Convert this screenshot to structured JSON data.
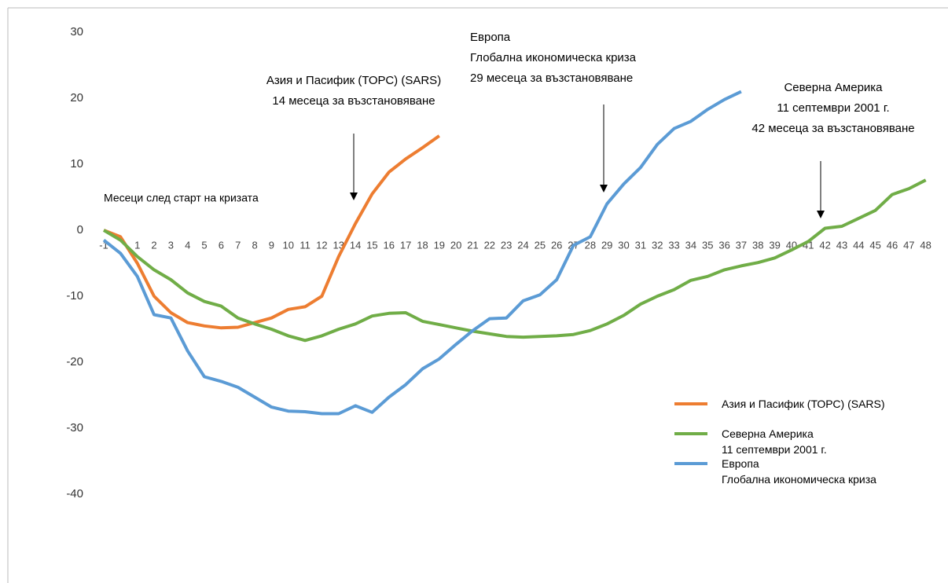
{
  "chart_data": {
    "type": "line",
    "xlabel": "Месеци след старт на кризата",
    "categories": [
      "-1",
      null,
      "1",
      "2",
      "3",
      "4",
      "5",
      "6",
      "7",
      "8",
      "9",
      "10",
      "11",
      "12",
      "13",
      "14",
      "15",
      "16",
      "17",
      "18",
      "19",
      "20",
      "21",
      "22",
      "23",
      "24",
      "25",
      "26",
      "27",
      "28",
      "29",
      "30",
      "31",
      "32",
      "33",
      "34",
      "35",
      "36",
      "37",
      "38",
      "39",
      "40",
      "41",
      "42",
      "43",
      "44",
      "45",
      "46",
      "47",
      "48"
    ],
    "series": [
      {
        "name": "Азия и Пасифик (ТОРС) (SARS)",
        "color": "#ed7d31",
        "values": [
          0,
          -1,
          -5,
          -10,
          -12.5,
          -14,
          -14.5,
          -14.8,
          -14.7,
          -14,
          -13.3,
          -12,
          -11.6,
          -10,
          -4,
          1,
          5.5,
          8.8,
          10.8,
          12.5,
          14.3,
          null,
          null,
          null,
          null,
          null,
          null,
          null,
          null,
          null,
          null,
          null,
          null,
          null,
          null,
          null,
          null,
          null,
          null,
          null,
          null,
          null,
          null,
          null,
          null,
          null,
          null,
          null,
          null,
          null
        ]
      },
      {
        "name": "Северна Америка\n11 септември 2001 г.",
        "color": "#70ad47",
        "values": [
          0,
          -1.5,
          -4,
          -6,
          -7.5,
          -9.5,
          -10.8,
          -11.5,
          -13.3,
          -14.2,
          -15,
          -16,
          -16.7,
          -16,
          -15,
          -14.2,
          -13,
          -12.6,
          -12.5,
          -13.8,
          -14.3,
          -14.8,
          -15.3,
          -15.7,
          -16.1,
          -16.2,
          -16.1,
          -16,
          -15.8,
          -15.2,
          -14.2,
          -12.9,
          -11.2,
          -10,
          -9,
          -7.6,
          -7,
          -6,
          -5.4,
          -4.9,
          -4.2,
          -3,
          -1.7,
          0.3,
          0.6,
          1.8,
          3,
          5.4,
          6.3,
          7.6
        ]
      },
      {
        "name": "Европа\nГлобална икономическа криза",
        "color": "#5b9bd5",
        "values": [
          -1.5,
          -3.5,
          -7,
          -12.8,
          -13.3,
          -18.3,
          -22.2,
          -22.9,
          -23.8,
          -25.3,
          -26.8,
          -27.4,
          -27.5,
          -27.8,
          -27.8,
          -26.6,
          -27.6,
          -25.3,
          -23.4,
          -21,
          -19.5,
          -17.3,
          -15.2,
          -13.4,
          -13.3,
          -10.7,
          -9.8,
          -7.5,
          -2.3,
          -1,
          4,
          7,
          9.5,
          13,
          15.4,
          16.5,
          18.3,
          19.8,
          21,
          null,
          null,
          null,
          null,
          null,
          null,
          null,
          null,
          null,
          null,
          null
        ]
      }
    ],
    "annotations": [
      "Азия и Пасифик (ТОРС) (SARS)\n14 месеца за възстановяване",
      "Европа\nГлобална икономическа криза\n29 месеца за възстановяване",
      "Северна Америка\n11 септември 2001 г.\n42 месеца за възстановяване"
    ],
    "ylim": [
      -40,
      30
    ],
    "yticks": [
      30,
      20,
      10,
      0,
      -10,
      -20,
      -30,
      -40
    ]
  }
}
